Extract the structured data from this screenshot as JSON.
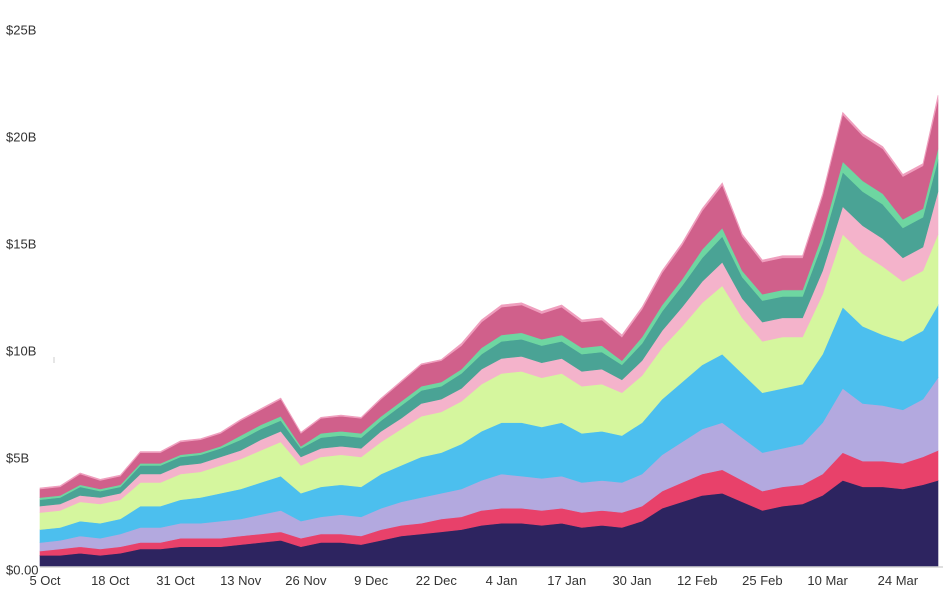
{
  "chart_data": {
    "type": "area",
    "stacked": true,
    "title": "",
    "xlabel": "",
    "ylabel": "",
    "ylim": [
      0,
      25
    ],
    "y_unit": "billions USD",
    "grid": false,
    "legend": "none",
    "y_ticks": [
      {
        "value": 0,
        "label": "$0.00"
      },
      {
        "value": 5,
        "label": "$5B"
      },
      {
        "value": 10,
        "label": "$10B"
      },
      {
        "value": 15,
        "label": "$15B"
      },
      {
        "value": 20,
        "label": "$20B"
      },
      {
        "value": 25,
        "label": "$25B"
      }
    ],
    "x_ticks": [
      {
        "day": 0,
        "label": "5 Oct"
      },
      {
        "day": 13,
        "label": "18 Oct"
      },
      {
        "day": 26,
        "label": "31 Oct"
      },
      {
        "day": 39,
        "label": "13 Nov"
      },
      {
        "day": 52,
        "label": "26 Nov"
      },
      {
        "day": 65,
        "label": "9 Dec"
      },
      {
        "day": 78,
        "label": "22 Dec"
      },
      {
        "day": 91,
        "label": "4 Jan"
      },
      {
        "day": 104,
        "label": "17 Jan"
      },
      {
        "day": 117,
        "label": "30 Jan"
      },
      {
        "day": 130,
        "label": "12 Feb"
      },
      {
        "day": 143,
        "label": "25 Feb"
      },
      {
        "day": 156,
        "label": "10 Mar"
      },
      {
        "day": 170,
        "label": "24 Mar"
      }
    ],
    "x": [
      -1,
      3,
      7,
      11,
      15,
      19,
      23,
      27,
      31,
      35,
      39,
      43,
      47,
      51,
      55,
      59,
      63,
      67,
      71,
      75,
      79,
      83,
      87,
      91,
      95,
      99,
      103,
      107,
      111,
      115,
      119,
      123,
      127,
      131,
      135,
      139,
      143,
      147,
      151,
      155,
      159,
      163,
      167,
      171,
      175,
      178
    ],
    "series": [
      {
        "color": "#2d2460",
        "values": [
          0.5,
          0.5,
          0.6,
          0.5,
          0.6,
          0.8,
          0.8,
          0.9,
          0.9,
          0.9,
          1.0,
          1.1,
          1.2,
          0.9,
          1.1,
          1.1,
          1.0,
          1.2,
          1.4,
          1.5,
          1.6,
          1.7,
          1.9,
          2.0,
          2.0,
          1.9,
          2.0,
          1.8,
          1.9,
          1.8,
          2.1,
          2.7,
          3.0,
          3.3,
          3.4,
          3.0,
          2.6,
          2.8,
          2.9,
          3.3,
          4.0,
          3.7,
          3.7,
          3.6,
          3.8,
          4.0
        ]
      },
      {
        "color": "#e8416a",
        "values": [
          0.2,
          0.3,
          0.3,
          0.3,
          0.3,
          0.3,
          0.3,
          0.4,
          0.4,
          0.4,
          0.4,
          0.4,
          0.4,
          0.4,
          0.4,
          0.4,
          0.4,
          0.5,
          0.5,
          0.5,
          0.6,
          0.6,
          0.7,
          0.7,
          0.7,
          0.7,
          0.7,
          0.7,
          0.7,
          0.7,
          0.7,
          0.8,
          0.9,
          1.0,
          1.1,
          1.0,
          0.9,
          0.9,
          0.9,
          1.0,
          1.3,
          1.2,
          1.2,
          1.2,
          1.3,
          1.4
        ]
      },
      {
        "color": "#b3a9df",
        "values": [
          0.4,
          0.4,
          0.5,
          0.5,
          0.6,
          0.7,
          0.7,
          0.7,
          0.7,
          0.8,
          0.8,
          0.9,
          1.0,
          0.8,
          0.8,
          0.9,
          0.9,
          1.0,
          1.1,
          1.2,
          1.2,
          1.3,
          1.4,
          1.6,
          1.5,
          1.5,
          1.5,
          1.4,
          1.4,
          1.4,
          1.5,
          1.7,
          1.9,
          2.1,
          2.2,
          2.0,
          1.8,
          1.8,
          1.9,
          2.4,
          3.0,
          2.7,
          2.6,
          2.5,
          2.7,
          3.4
        ]
      },
      {
        "color": "#4cbfee",
        "values": [
          0.6,
          0.6,
          0.7,
          0.7,
          0.7,
          1.0,
          1.0,
          1.1,
          1.2,
          1.3,
          1.4,
          1.5,
          1.6,
          1.3,
          1.4,
          1.4,
          1.4,
          1.6,
          1.7,
          1.9,
          1.9,
          2.1,
          2.3,
          2.4,
          2.5,
          2.4,
          2.5,
          2.3,
          2.3,
          2.2,
          2.4,
          2.6,
          2.8,
          3.0,
          3.2,
          3.0,
          2.8,
          2.8,
          2.8,
          3.2,
          3.8,
          3.6,
          3.3,
          3.2,
          3.2,
          3.4
        ]
      },
      {
        "color": "#d5f69e",
        "values": [
          0.8,
          0.8,
          0.9,
          0.9,
          0.9,
          1.1,
          1.1,
          1.2,
          1.2,
          1.3,
          1.4,
          1.5,
          1.6,
          1.3,
          1.4,
          1.4,
          1.4,
          1.5,
          1.7,
          1.9,
          1.9,
          2.0,
          2.2,
          2.3,
          2.4,
          2.3,
          2.3,
          2.2,
          2.2,
          2.0,
          2.2,
          2.4,
          2.6,
          2.9,
          3.2,
          2.6,
          2.4,
          2.4,
          2.2,
          2.8,
          3.4,
          3.4,
          3.2,
          2.8,
          2.8,
          3.3
        ]
      },
      {
        "color": "#f4b3cb",
        "values": [
          0.3,
          0.3,
          0.3,
          0.3,
          0.3,
          0.4,
          0.4,
          0.4,
          0.4,
          0.4,
          0.4,
          0.5,
          0.5,
          0.4,
          0.4,
          0.4,
          0.4,
          0.5,
          0.5,
          0.6,
          0.6,
          0.6,
          0.7,
          0.7,
          0.7,
          0.7,
          0.7,
          0.7,
          0.7,
          0.6,
          0.7,
          0.8,
          0.9,
          1.0,
          1.1,
          0.9,
          0.9,
          0.9,
          0.9,
          1.1,
          1.3,
          1.3,
          1.3,
          1.1,
          1.1,
          2.0
        ]
      },
      {
        "color": "#4aa395",
        "values": [
          0.3,
          0.3,
          0.4,
          0.3,
          0.3,
          0.4,
          0.4,
          0.4,
          0.4,
          0.4,
          0.5,
          0.5,
          0.5,
          0.4,
          0.5,
          0.5,
          0.5,
          0.5,
          0.6,
          0.6,
          0.6,
          0.7,
          0.7,
          0.8,
          0.8,
          0.8,
          0.8,
          0.8,
          0.8,
          0.7,
          0.8,
          0.9,
          1.0,
          1.1,
          1.2,
          1.0,
          1.0,
          1.0,
          1.0,
          1.3,
          1.6,
          1.6,
          1.6,
          1.4,
          1.4,
          1.5
        ]
      },
      {
        "color": "#6ed6a1",
        "values": [
          0.1,
          0.1,
          0.1,
          0.1,
          0.1,
          0.1,
          0.1,
          0.1,
          0.1,
          0.1,
          0.2,
          0.2,
          0.2,
          0.1,
          0.2,
          0.2,
          0.2,
          0.2,
          0.2,
          0.2,
          0.2,
          0.2,
          0.3,
          0.3,
          0.3,
          0.3,
          0.3,
          0.3,
          0.3,
          0.2,
          0.3,
          0.3,
          0.3,
          0.4,
          0.4,
          0.3,
          0.3,
          0.3,
          0.3,
          0.4,
          0.5,
          0.5,
          0.5,
          0.4,
          0.4,
          0.5
        ]
      },
      {
        "color": "#d0608b",
        "values": [
          0.4,
          0.4,
          0.5,
          0.4,
          0.4,
          0.5,
          0.5,
          0.6,
          0.6,
          0.6,
          0.7,
          0.7,
          0.8,
          0.6,
          0.7,
          0.7,
          0.7,
          0.8,
          0.9,
          1.0,
          1.0,
          1.1,
          1.2,
          1.3,
          1.3,
          1.2,
          1.3,
          1.2,
          1.2,
          1.1,
          1.3,
          1.5,
          1.6,
          1.8,
          2.0,
          1.6,
          1.5,
          1.5,
          1.5,
          1.8,
          2.2,
          2.1,
          2.1,
          2.0,
          2.0,
          2.3
        ]
      },
      {
        "color": "#ef9fbe",
        "values": [
          0.05,
          0.05,
          0.05,
          0.05,
          0.05,
          0.05,
          0.05,
          0.05,
          0.05,
          0.05,
          0.05,
          0.05,
          0.05,
          0.05,
          0.05,
          0.05,
          0.05,
          0.05,
          0.05,
          0.05,
          0.05,
          0.1,
          0.1,
          0.1,
          0.1,
          0.1,
          0.1,
          0.1,
          0.1,
          0.1,
          0.1,
          0.1,
          0.1,
          0.1,
          0.1,
          0.1,
          0.1,
          0.1,
          0.1,
          0.1,
          0.1,
          0.1,
          0.1,
          0.1,
          0.1,
          0.2
        ]
      }
    ]
  }
}
